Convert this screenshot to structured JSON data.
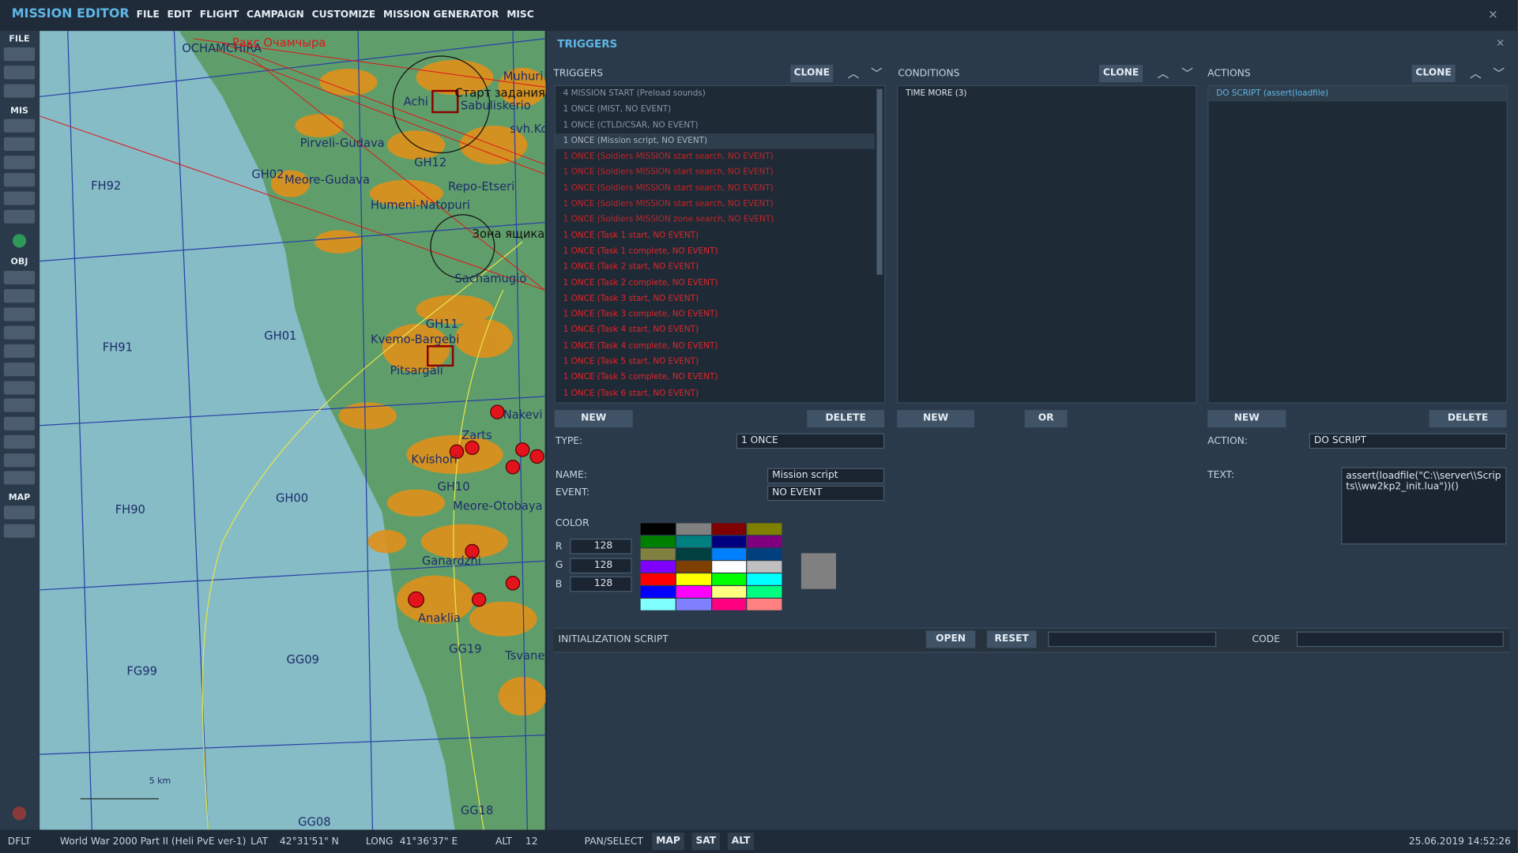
{
  "app": {
    "title": "MISSION EDITOR",
    "menu": [
      "FILE",
      "EDIT",
      "FLIGHT",
      "CAMPAIGN",
      "CUSTOMIZE",
      "MISSION GENERATOR",
      "MISC"
    ]
  },
  "toolbar": {
    "sections": [
      "FILE",
      "MIS",
      "OBJ",
      "MAP"
    ]
  },
  "map": {
    "labels": [
      "OCHAMCHIRA",
      "Ракс Очамчыра",
      "Achi",
      "Старт задания",
      "Sabuliskerio",
      "Muhuri",
      "svh.Ko",
      "Pirveli-Gudava",
      "GH12",
      "GH02",
      "Meore-Gudava",
      "Repo-Etseri",
      "FH92",
      "Humeni-Natopuri",
      "Зона ящика",
      "Sachamugio",
      "GH11",
      "GH01",
      "FH91",
      "Kvemo-Bargebi",
      "Pitsargali",
      "Nakevi",
      "Zarts",
      "Kvishori",
      "GH10",
      "Meore-Otobaya",
      "FH90",
      "GH00",
      "Ganardzhi",
      "Anaklia",
      "GG19",
      "Tsvane",
      "FG99",
      "GG09",
      "GG18",
      "GG08"
    ],
    "scale": "5 km"
  },
  "panel": {
    "title": "TRIGGERS",
    "triggers": {
      "header": "TRIGGERS",
      "clone": "CLONE",
      "new": "NEW",
      "delete": "DELETE",
      "selected": 3,
      "items": [
        {
          "label": "4 MISSION START (Preload sounds)",
          "color": "#8a97a6"
        },
        {
          "label": "1 ONCE (MIST, NO EVENT)",
          "color": "#8a97a6"
        },
        {
          "label": "1 ONCE (CTLD/CSAR, NO EVENT)",
          "color": "#8a97a6"
        },
        {
          "label": "1 ONCE (Mission script, NO EVENT)",
          "color": "#aab5c2"
        },
        {
          "label": "1 ONCE (Soldiers MISSION start search, NO EVENT)",
          "color": "#c0262a"
        },
        {
          "label": "1 ONCE (Soldiers MISSION start search, NO EVENT)",
          "color": "#c0262a"
        },
        {
          "label": "1 ONCE (Soldiers MISSION start search, NO EVENT)",
          "color": "#c0262a"
        },
        {
          "label": "1 ONCE (Soldiers MISSION start search, NO EVENT)",
          "color": "#c0262a"
        },
        {
          "label": "1 ONCE (Soldiers MISSION zone search, NO EVENT)",
          "color": "#c0262a"
        },
        {
          "label": "1 ONCE (Task 1 start, NO EVENT)",
          "color": "#e0262a"
        },
        {
          "label": "1 ONCE (Task 1 complete, NO EVENT)",
          "color": "#e0262a"
        },
        {
          "label": "1 ONCE (Task 2 start, NO EVENT)",
          "color": "#e0262a"
        },
        {
          "label": "1 ONCE (Task 2 complete, NO EVENT)",
          "color": "#e0262a"
        },
        {
          "label": "1 ONCE (Task 3 start, NO EVENT)",
          "color": "#e0262a"
        },
        {
          "label": "1 ONCE (Task 3 complete, NO EVENT)",
          "color": "#e0262a"
        },
        {
          "label": "1 ONCE (Task 4 start, NO EVENT)",
          "color": "#e0262a"
        },
        {
          "label": "1 ONCE (Task 4 complete, NO EVENT)",
          "color": "#e0262a"
        },
        {
          "label": "1 ONCE (Task 5 start, NO EVENT)",
          "color": "#e0262a"
        },
        {
          "label": "1 ONCE (Task 5 complete, NO EVENT)",
          "color": "#e0262a"
        },
        {
          "label": "1 ONCE (Task 6 start, NO EVENT)",
          "color": "#e0262a"
        }
      ]
    },
    "conditions": {
      "header": "CONDITIONS",
      "clone": "CLONE",
      "new": "NEW",
      "or": "OR",
      "items": [
        "TIME MORE (3)"
      ]
    },
    "actions": {
      "header": "ACTIONS",
      "clone": "CLONE",
      "new": "NEW",
      "delete": "DELETE",
      "items": [
        "DO SCRIPT (assert(loadfile)"
      ]
    },
    "form": {
      "type_label": "TYPE:",
      "type": "1 ONCE",
      "name_label": "NAME:",
      "name": "Mission script",
      "event_label": "EVENT:",
      "event": "NO EVENT",
      "action_label": "ACTION:",
      "action": "DO SCRIPT",
      "text_label": "TEXT:",
      "text": "assert(loadfile(\"C:\\\\server\\\\Scripts\\\\ww2kp2_init.lua\"))()",
      "color_label": "COLOR",
      "r_label": "R",
      "r": 128,
      "g_label": "G",
      "g": 128,
      "b_label": "B",
      "b": 128,
      "palette": [
        "#000000",
        "#808080",
        "#800000",
        "#808000",
        "#008000",
        "#008080",
        "#000080",
        "#800080",
        "#808040",
        "#004040",
        "#0080ff",
        "#004080",
        "#8000ff",
        "#804000",
        "#ffffff",
        "#c0c0c0",
        "#ff0000",
        "#ffff00",
        "#00ff00",
        "#00ffff",
        "#0000ff",
        "#ff00ff",
        "#ffff80",
        "#00ff80",
        "#80ffff",
        "#8080ff",
        "#ff0080",
        "#ff8080"
      ],
      "preview": "#808080"
    },
    "init": {
      "label": "INITIALIZATION SCRIPT",
      "open": "OPEN",
      "reset": "RESET",
      "code": "CODE"
    }
  },
  "status": {
    "profile": "DFLT",
    "mission": "World War 2000 Part II (Heli PvE ver-1)",
    "lat_label": "LAT",
    "lat": "42°31'51\" N",
    "long_label": "LONG",
    "long": "41°36'37\" E",
    "alt_label": "ALT",
    "alt": 12,
    "mode": "PAN/SELECT",
    "buttons": [
      "MAP",
      "SAT",
      "ALT"
    ],
    "datetime": "25.06.2019 14:52:26"
  }
}
